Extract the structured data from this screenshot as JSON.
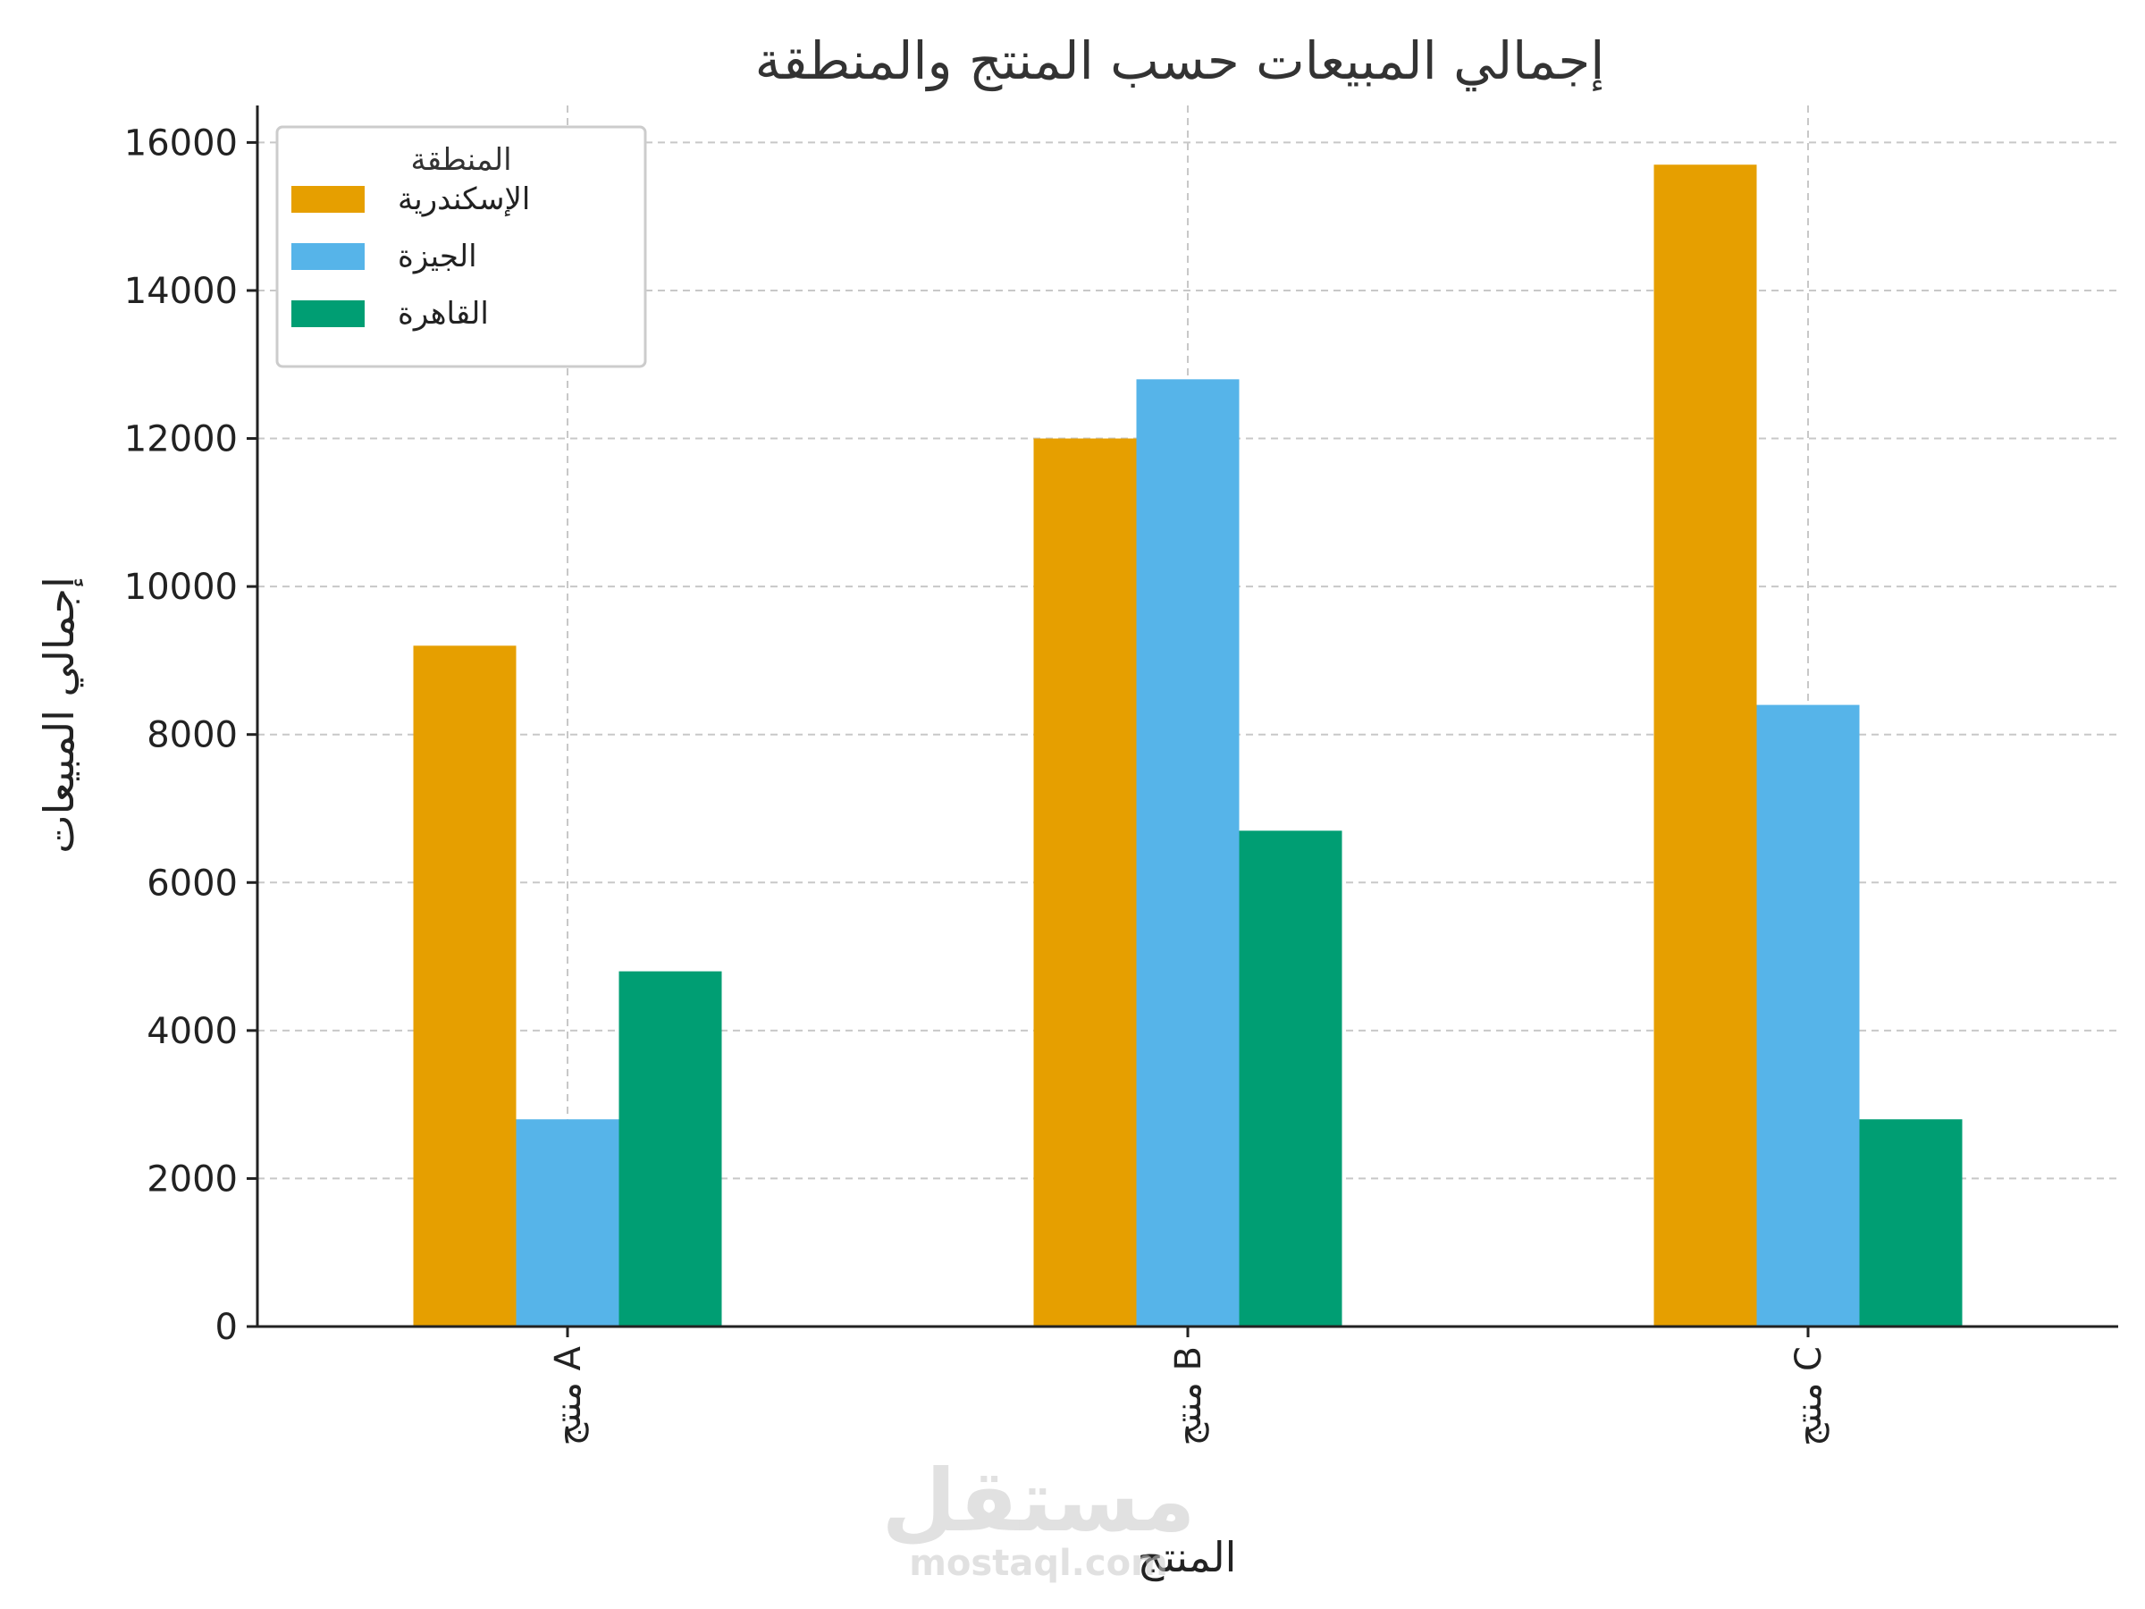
{
  "chart_data": {
    "type": "bar",
    "title": "إجمالي المبيعات حسب المنتج والمنطقة",
    "xlabel": "المنتج",
    "ylabel": "إجمالي المبيعات",
    "categories": [
      "منتج A",
      "منتج B",
      "منتج C"
    ],
    "series": [
      {
        "name": "الإسكندرية",
        "color": "#E69F00",
        "values": [
          9200,
          12000,
          15700
        ]
      },
      {
        "name": "الجيزة",
        "color": "#56B4E9",
        "values": [
          2800,
          12800,
          8400
        ]
      },
      {
        "name": "القاهرة",
        "color": "#009E73",
        "values": [
          4800,
          6700,
          2800
        ]
      }
    ],
    "ylim": [
      0,
      16500
    ],
    "yticks": [
      0,
      2000,
      4000,
      6000,
      8000,
      10000,
      12000,
      14000,
      16000
    ],
    "grid": true,
    "legend": {
      "title": "المنطقة",
      "placement": "top-left"
    }
  },
  "watermark": {
    "arabic": "مستقل",
    "latin": "mostaql.com"
  }
}
